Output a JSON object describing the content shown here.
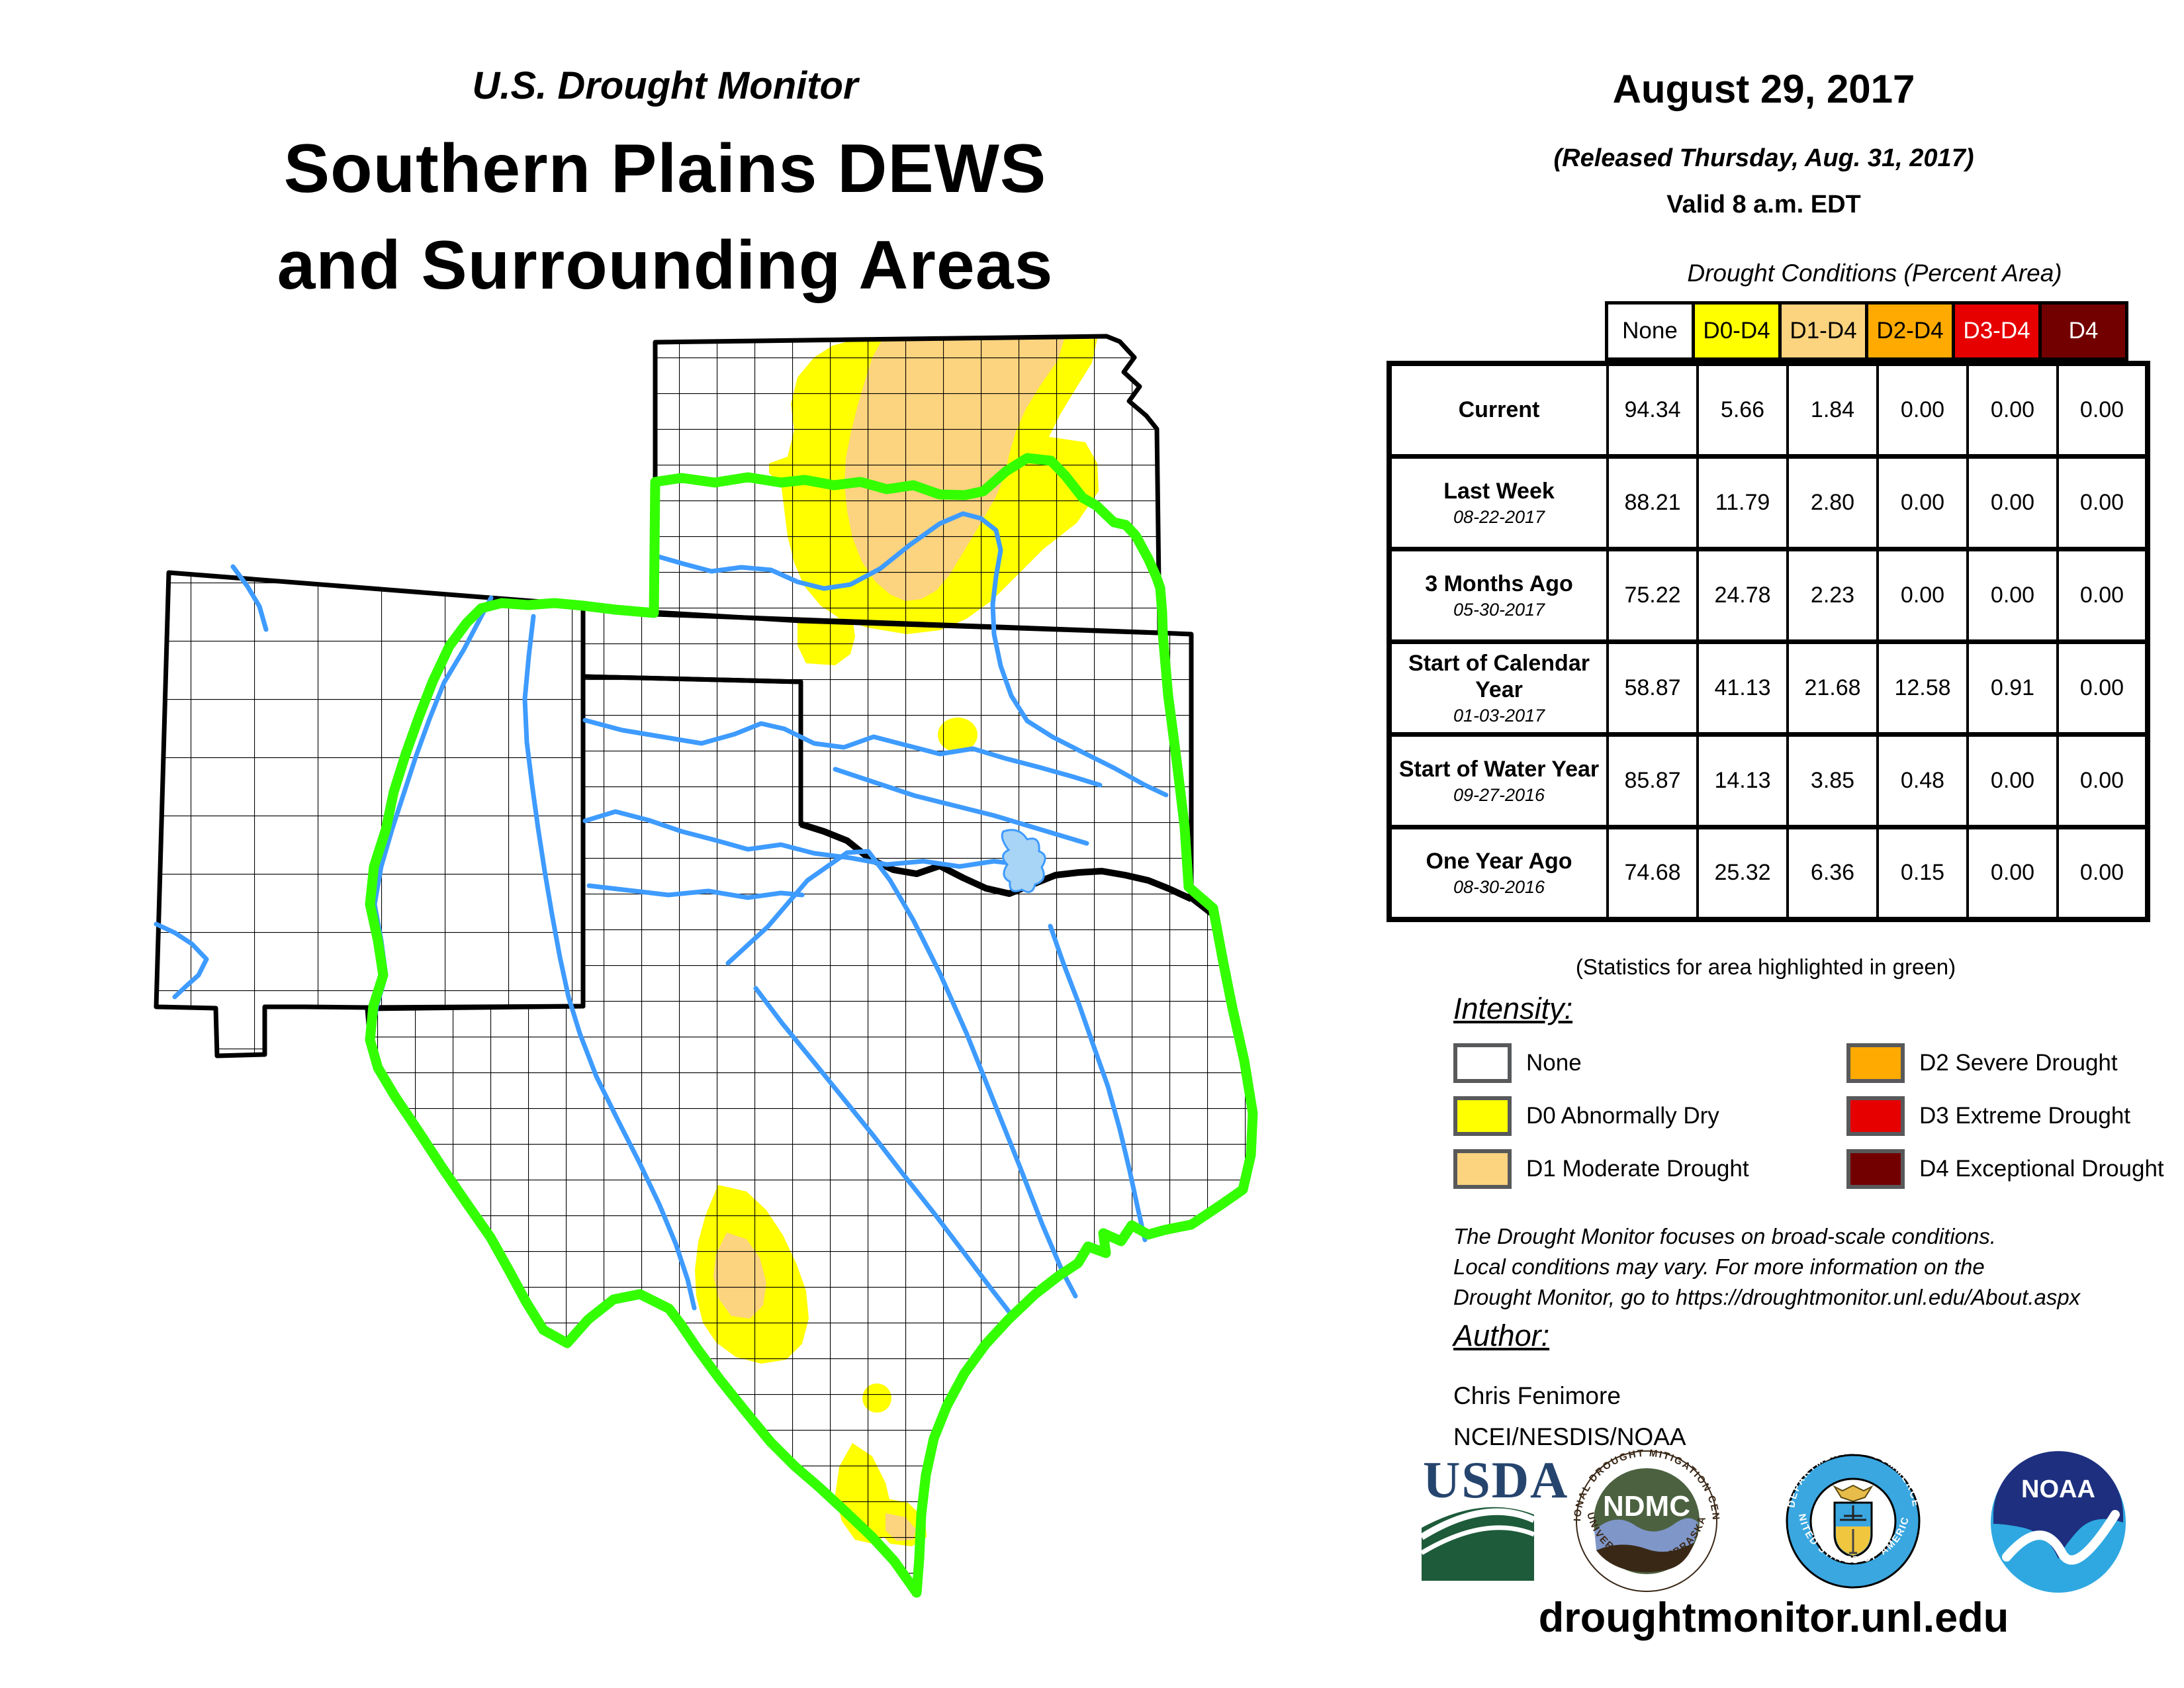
{
  "title_block": {
    "supertitle": "U.S. Drought Monitor",
    "title_line1": "Southern Plains DEWS",
    "title_line2": "and Surrounding Areas"
  },
  "header": {
    "date": "August 29, 2017",
    "released": "(Released Thursday, Aug. 31, 2017)",
    "valid": "Valid 8 a.m. EDT"
  },
  "table": {
    "title": "Drought Conditions (Percent Area)",
    "columns": [
      "None",
      "D0-D4",
      "D1-D4",
      "D2-D4",
      "D3-D4",
      "D4"
    ],
    "column_colors": [
      "#FFFFFF",
      "#FFFF00",
      "#FCD37F",
      "#FFAA00",
      "#E60000",
      "#730000"
    ],
    "column_text_colors": [
      "#000000",
      "#000000",
      "#000000",
      "#000000",
      "#FFFFFF",
      "#FFFFFF"
    ],
    "rows": [
      {
        "label": "Current",
        "date": "",
        "values": [
          "94.34",
          "5.66",
          "1.84",
          "0.00",
          "0.00",
          "0.00"
        ]
      },
      {
        "label": "Last Week",
        "date": "08-22-2017",
        "values": [
          "88.21",
          "11.79",
          "2.80",
          "0.00",
          "0.00",
          "0.00"
        ]
      },
      {
        "label": "3 Months Ago",
        "date": "05-30-2017",
        "values": [
          "75.22",
          "24.78",
          "2.23",
          "0.00",
          "0.00",
          "0.00"
        ]
      },
      {
        "label": "Start of Calendar Year",
        "date": "01-03-2017",
        "values": [
          "58.87",
          "41.13",
          "21.68",
          "12.58",
          "0.91",
          "0.00"
        ]
      },
      {
        "label": "Start of Water Year",
        "date": "09-27-2016",
        "values": [
          "85.87",
          "14.13",
          "3.85",
          "0.48",
          "0.00",
          "0.00"
        ]
      },
      {
        "label": "One Year Ago",
        "date": "08-30-2016",
        "values": [
          "74.68",
          "25.32",
          "6.36",
          "0.15",
          "0.00",
          "0.00"
        ]
      }
    ],
    "footnote": "(Statistics for area highlighted in green)"
  },
  "legend": {
    "heading": "Intensity:",
    "items": [
      {
        "label": "None",
        "color": "#FFFFFF"
      },
      {
        "label": "D0 Abnormally Dry",
        "color": "#FFFF00"
      },
      {
        "label": "D1 Moderate Drought",
        "color": "#FCD37F"
      },
      {
        "label": "D2 Severe Drought",
        "color": "#FFAA00"
      },
      {
        "label": "D3 Extreme Drought",
        "color": "#E60000"
      },
      {
        "label": "D4 Exceptional Drought",
        "color": "#730000"
      }
    ]
  },
  "disclaimer": {
    "line1": "The Drought Monitor focuses on broad-scale conditions.",
    "line2": "Local conditions may vary. For more information on the",
    "line3": "Drought Monitor, go to https://droughtmonitor.unl.edu/About.aspx"
  },
  "author": {
    "heading": "Author:",
    "name": "Chris Fenimore",
    "org": "NCEI/NESDIS/NOAA"
  },
  "footer": {
    "url": "droughtmonitor.unl.edu"
  },
  "logos": {
    "usda": "USDA",
    "ndmc": "NDMC",
    "ndmc_ring_top": "NATIONAL DROUGHT MITIGATION CENTER",
    "ndmc_ring_bottom": "UNIVERSITY OF NEBRASKA",
    "doc_ring_top": "DEPARTMENT OF COMMERCE",
    "doc_ring_bottom": "UNITED STATES OF AMERICA",
    "noaa": "NOAA"
  },
  "map": {
    "colors": {
      "dews_outline": "#33FF00",
      "river": "#3E9BFF",
      "lake": "#A8D4F5",
      "d0_yellow": "#FFFF00",
      "d1_tan": "#FCD37F",
      "state_border": "#000000"
    },
    "highlight_note": "DEWS region outlined in green covers Kansas, Oklahoma, Texas and the Rio Grande corridor of New Mexico"
  }
}
